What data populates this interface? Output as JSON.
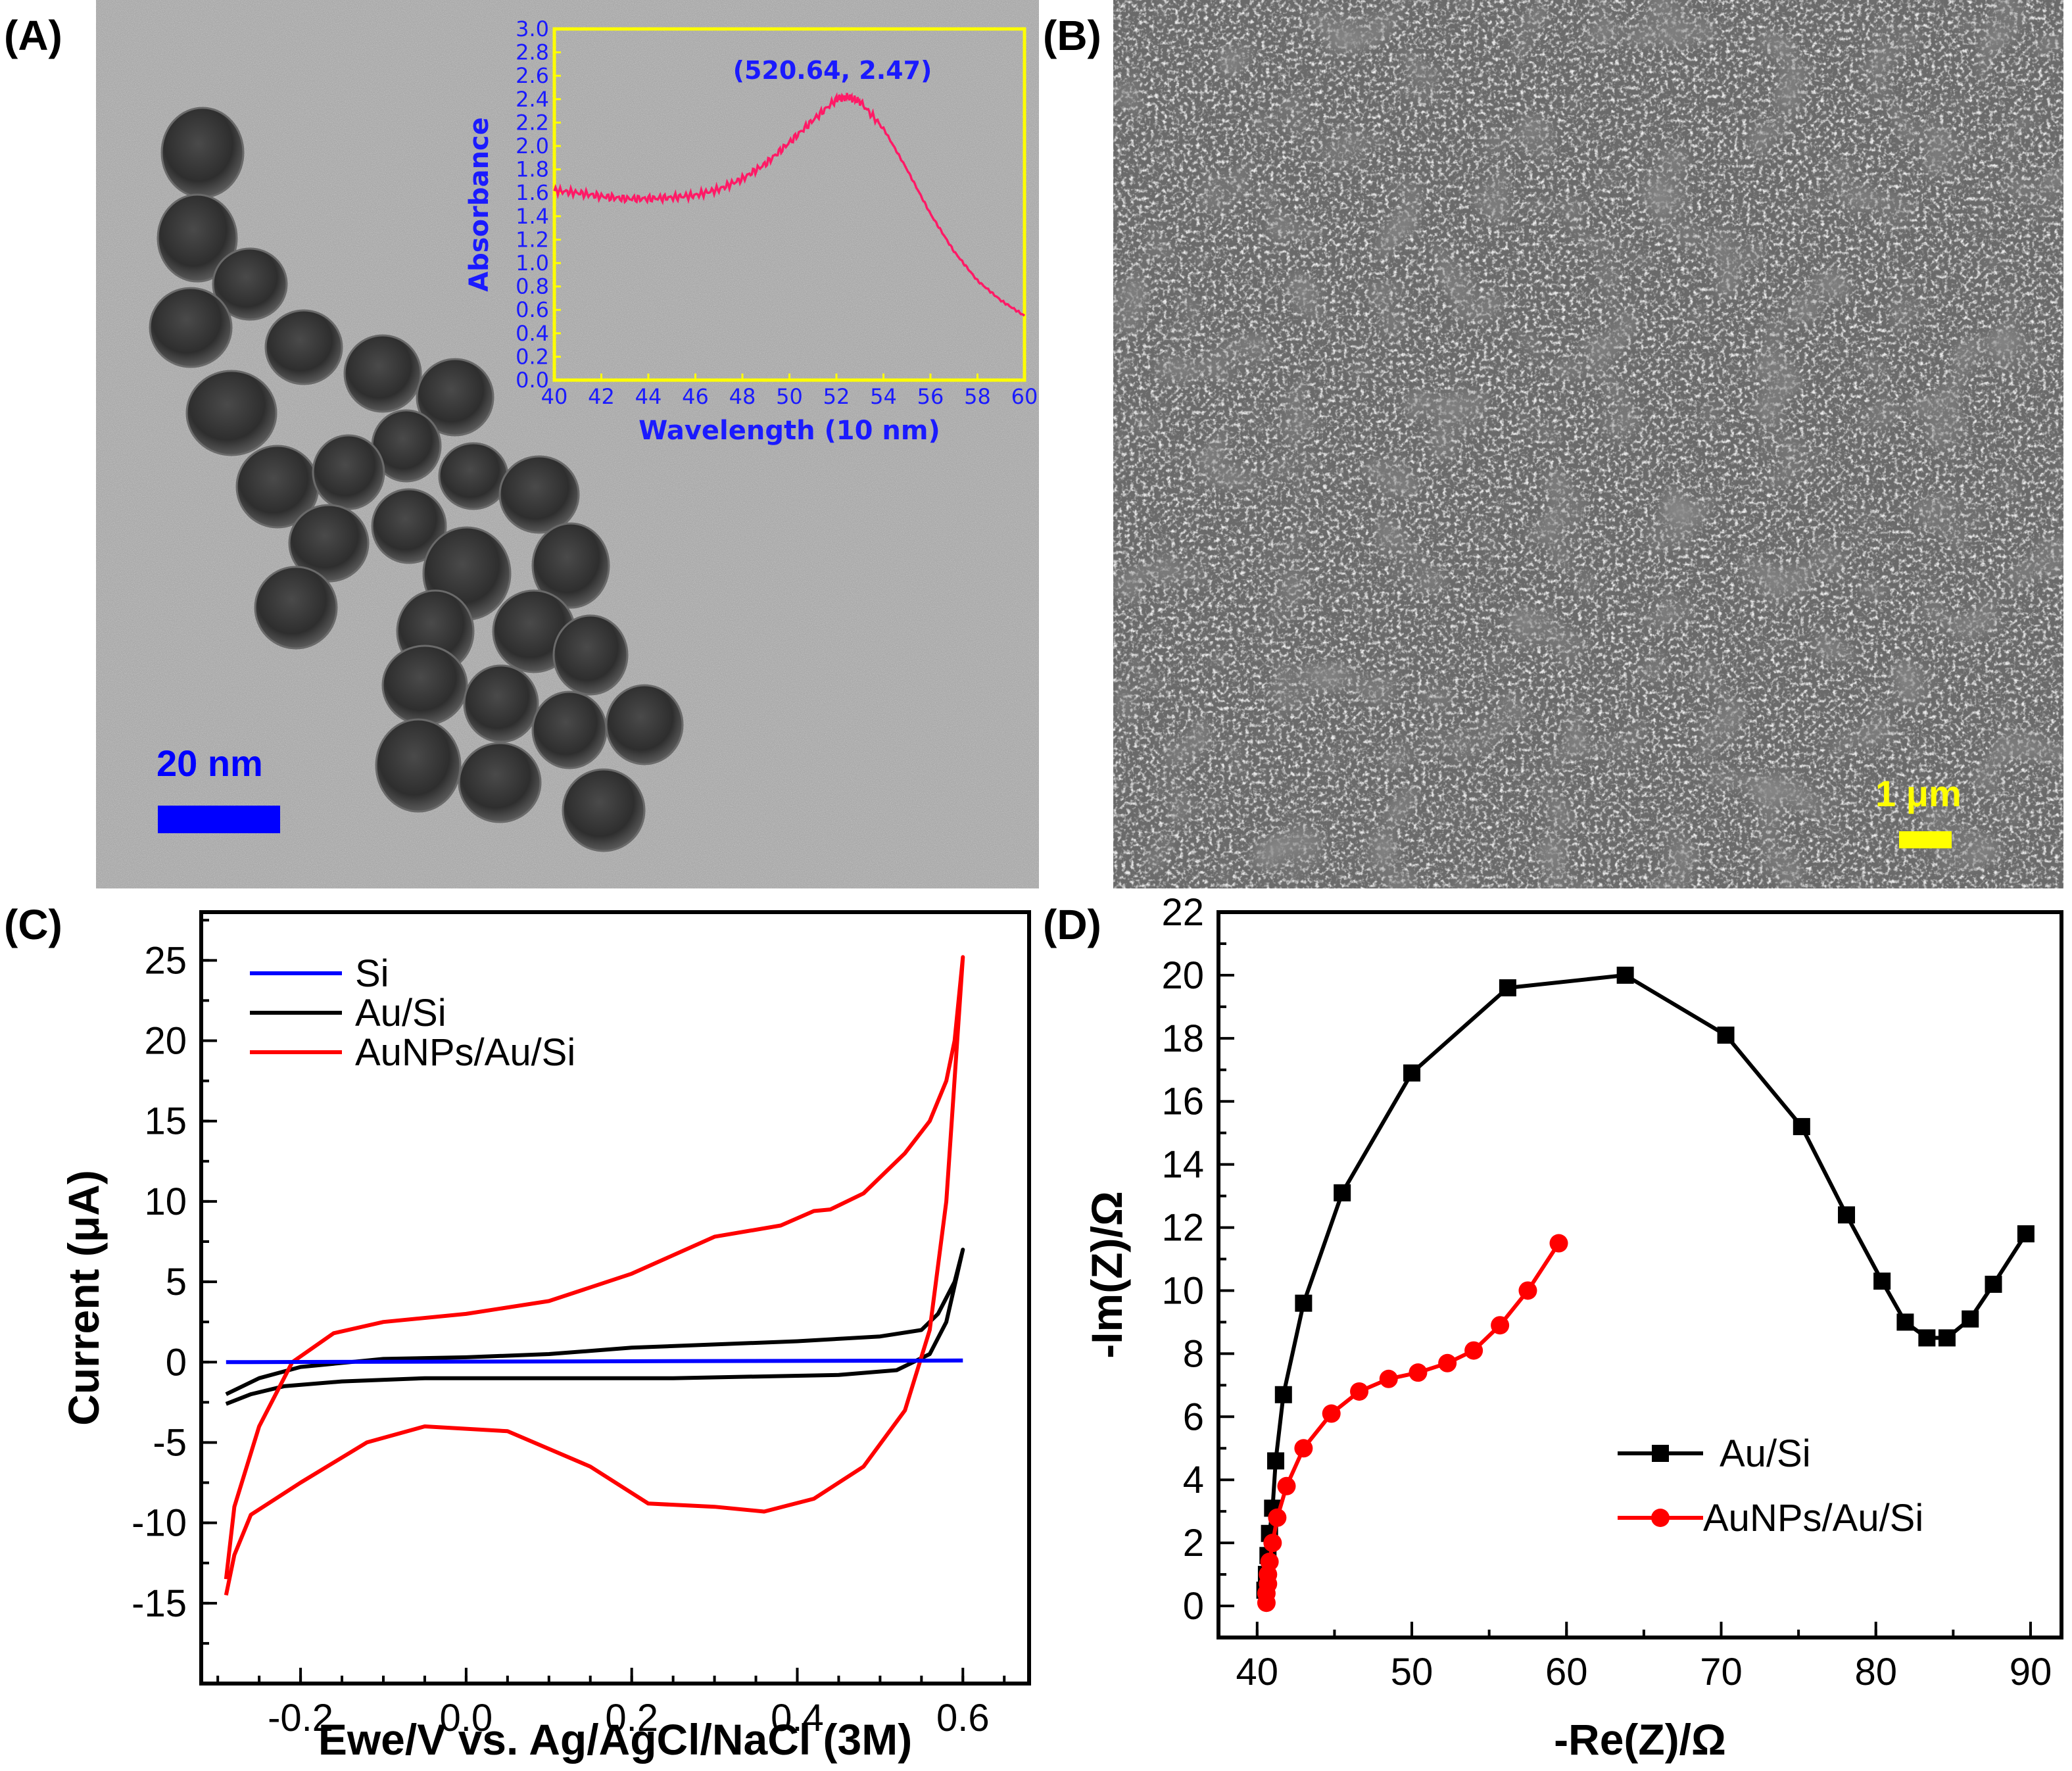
{
  "panels": {
    "a": {
      "letter": "(A)",
      "scale_label": "20 nm",
      "scale_color": "#0000ff"
    },
    "b": {
      "letter": "(B)",
      "scale_label": "1 μm",
      "scale_color": "#ffff00"
    },
    "c": {
      "letter": "(C)"
    },
    "d": {
      "letter": "(D)"
    }
  },
  "chart_data": [
    {
      "id": "inset_uvvis",
      "type": "line",
      "xlabel": "Wavelength (10 nm)",
      "ylabel": "Absorbance",
      "xlim": [
        40,
        60
      ],
      "ylim": [
        0.0,
        3.0
      ],
      "x_ticks": [
        "40",
        "42",
        "44",
        "46",
        "48",
        "50",
        "52",
        "54",
        "56",
        "58",
        "60"
      ],
      "y_ticks": [
        "0.0",
        "0.2",
        "0.4",
        "0.6",
        "0.8",
        "1.0",
        "1.2",
        "1.4",
        "1.6",
        "1.8",
        "2.0",
        "2.2",
        "2.4",
        "2.6",
        "2.8",
        "3.0"
      ],
      "frame_color": "#ffff00",
      "text_color": "#1a1aff",
      "annotation": {
        "text": "(520.64, 2.47)",
        "x": 52.06,
        "y": 2.47
      },
      "series": [
        {
          "color": "#ff1a66",
          "x": [
            40,
            41,
            42,
            43,
            44,
            45,
            46,
            47,
            48,
            49,
            50,
            51,
            52,
            52.5,
            53,
            54,
            55,
            56,
            57,
            58,
            59,
            60
          ],
          "y": [
            1.62,
            1.6,
            1.57,
            1.55,
            1.55,
            1.56,
            1.58,
            1.63,
            1.72,
            1.85,
            2.03,
            2.22,
            2.4,
            2.42,
            2.38,
            2.15,
            1.8,
            1.42,
            1.1,
            0.85,
            0.68,
            0.55
          ]
        }
      ]
    },
    {
      "id": "cv",
      "type": "line",
      "xlabel": "Ewe/V vs. Ag/AgCl/NaCl (3M)",
      "ylabel": "Current (μA)",
      "xlim": [
        -0.32,
        0.68
      ],
      "ylim": [
        -20,
        28
      ],
      "x_ticks": [
        "-0.2",
        "0.0",
        "0.2",
        "0.4",
        "0.6"
      ],
      "y_ticks": [
        "25",
        "20",
        "15",
        "10",
        "5",
        "0",
        "-5",
        "-10",
        "-15"
      ],
      "legend_position": "top-left",
      "series": [
        {
          "name": "Si",
          "color": "#0000ff",
          "x": [
            -0.29,
            0.6
          ],
          "y": [
            0,
            0.1
          ]
        },
        {
          "name": "Au/Si",
          "color": "#000000",
          "x": [
            -0.29,
            -0.26,
            -0.22,
            -0.15,
            -0.05,
            0.05,
            0.15,
            0.25,
            0.35,
            0.45,
            0.52,
            0.56,
            0.58,
            0.6,
            0.59,
            0.57,
            0.55,
            0.5,
            0.4,
            0.3,
            0.2,
            0.1,
            0.0,
            -0.1,
            -0.2,
            -0.25,
            -0.29
          ],
          "y": [
            -2.6,
            -2.0,
            -1.5,
            -1.2,
            -1.0,
            -1.0,
            -1.0,
            -1.0,
            -0.9,
            -0.8,
            -0.5,
            0.5,
            2.5,
            7.0,
            5.0,
            3.0,
            2.0,
            1.6,
            1.3,
            1.1,
            0.9,
            0.5,
            0.3,
            0.2,
            -0.3,
            -1.0,
            -2.0
          ]
        },
        {
          "name": "AuNPs/Au/Si",
          "color": "#ff0000",
          "x": [
            -0.29,
            -0.28,
            -0.26,
            -0.2,
            -0.12,
            -0.05,
            0.05,
            0.15,
            0.22,
            0.3,
            0.36,
            0.42,
            0.48,
            0.53,
            0.56,
            0.58,
            0.6,
            0.59,
            0.58,
            0.56,
            0.53,
            0.48,
            0.44,
            0.42,
            0.38,
            0.3,
            0.2,
            0.1,
            0.0,
            -0.1,
            -0.16,
            -0.21,
            -0.25,
            -0.28,
            -0.29
          ],
          "y": [
            -14.5,
            -12.0,
            -9.5,
            -7.5,
            -5.0,
            -4.0,
            -4.3,
            -6.5,
            -8.8,
            -9.0,
            -9.3,
            -8.5,
            -6.5,
            -3.0,
            2.0,
            10.0,
            25.2,
            20.0,
            17.5,
            15.0,
            13.0,
            10.5,
            9.5,
            9.4,
            8.5,
            7.8,
            5.5,
            3.8,
            3.0,
            2.5,
            1.8,
            0.0,
            -4.0,
            -9.0,
            -13.5
          ]
        }
      ]
    },
    {
      "id": "eis",
      "type": "scatter",
      "xlabel": "-Re(Z)/Ω",
      "ylabel": "-Im(Z)/Ω",
      "xlim": [
        37.5,
        92
      ],
      "ylim": [
        -1,
        22
      ],
      "x_ticks": [
        "40",
        "50",
        "60",
        "70",
        "80",
        "90"
      ],
      "y_ticks": [
        "0",
        "2",
        "4",
        "6",
        "8",
        "10",
        "12",
        "14",
        "16",
        "18",
        "20",
        "22"
      ],
      "legend_position": "bottom-right",
      "series": [
        {
          "name": "Au/Si",
          "color": "#000000",
          "marker": "square",
          "x": [
            40.5,
            40.6,
            40.7,
            40.8,
            41.0,
            41.2,
            41.7,
            43.0,
            45.5,
            50.0,
            56.2,
            63.8,
            70.3,
            75.2,
            78.1,
            80.4,
            81.9,
            83.3,
            84.6,
            86.1,
            87.6,
            89.7
          ],
          "y": [
            0.5,
            1.0,
            1.6,
            2.3,
            3.1,
            4.6,
            6.7,
            9.6,
            13.1,
            16.9,
            19.6,
            20.0,
            18.1,
            15.2,
            12.4,
            10.3,
            9.0,
            8.5,
            8.5,
            9.1,
            10.2,
            11.8
          ]
        },
        {
          "name": "AuNPs/Au/Si",
          "color": "#ff0000",
          "marker": "circle",
          "x": [
            40.6,
            40.6,
            40.7,
            40.7,
            40.8,
            41.0,
            41.3,
            41.9,
            43.0,
            44.8,
            46.6,
            48.5,
            50.4,
            52.3,
            54.0,
            55.7,
            57.5,
            59.5
          ],
          "y": [
            0.1,
            0.4,
            0.7,
            1.0,
            1.4,
            2.0,
            2.8,
            3.8,
            5.0,
            6.1,
            6.8,
            7.2,
            7.4,
            7.7,
            8.1,
            8.9,
            10.0,
            11.5
          ]
        }
      ]
    }
  ]
}
